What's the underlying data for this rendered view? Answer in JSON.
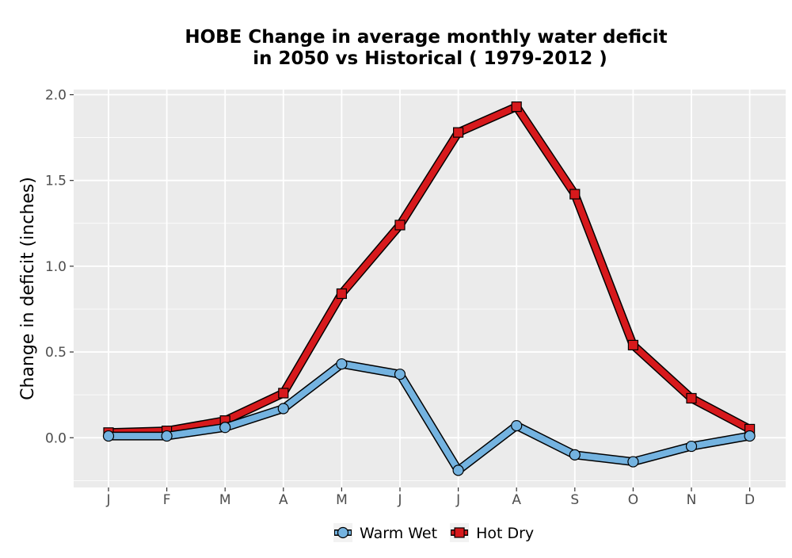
{
  "chart_data": {
    "type": "line",
    "title_line1": "HOBE  Change in average monthly water deficit",
    "title_line2": "in 2050 vs Historical ( 1979-2012 )",
    "xlabel": "",
    "ylabel": "Change in deficit (inches)",
    "categories": [
      "J",
      "F",
      "M",
      "A",
      "M",
      "J",
      "J",
      "A",
      "S",
      "O",
      "N",
      "D"
    ],
    "yticks": [
      "0.0",
      "0.5",
      "1.0",
      "1.5",
      "2.0"
    ],
    "ylim": [
      -0.29,
      2.03
    ],
    "grid": true,
    "legend_position": "bottom",
    "series": [
      {
        "name": "Warm Wet",
        "marker": "circle",
        "color": "#74b3e0",
        "values": [
          0.01,
          0.01,
          0.06,
          0.17,
          0.43,
          0.37,
          -0.19,
          0.07,
          -0.1,
          -0.14,
          -0.05,
          0.01
        ]
      },
      {
        "name": "Hot Dry",
        "marker": "square",
        "color": "#d7191c",
        "values": [
          0.03,
          0.04,
          0.1,
          0.26,
          0.84,
          1.24,
          1.78,
          1.93,
          1.42,
          0.54,
          0.23,
          0.05
        ]
      }
    ]
  }
}
